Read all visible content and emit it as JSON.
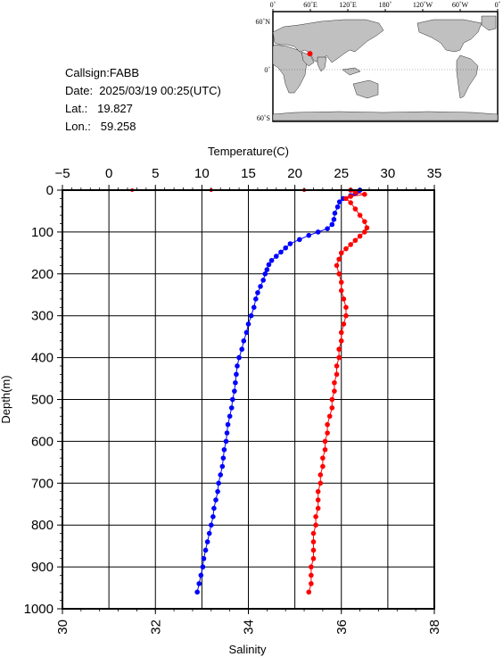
{
  "info": {
    "callsign": "Callsign:FABB",
    "date": "Date:  2025/03/19 00:25(UTC)",
    "lat": "Lat.:   19.827",
    "lon": "Lon.:   59.258"
  },
  "map": {
    "top_labels": [
      "0˚",
      "60˚E",
      "120˚E",
      "180˚",
      "120˚W",
      "60˚W",
      "0˚"
    ],
    "lat_labels": [
      "60˚N",
      "0˚",
      "60˚S"
    ],
    "station": {
      "lat": 19.827,
      "lon": 59.258
    },
    "colors": {
      "land": "#c0c0c0",
      "ocean": "#ffffff",
      "station": "#ff0000"
    }
  },
  "chart_data": {
    "type": "scatter",
    "ylabel": "Depth(m)",
    "ylim": [
      0,
      1000
    ],
    "yticks": [
      "0",
      "100",
      "200",
      "300",
      "400",
      "500",
      "600",
      "700",
      "800",
      "900",
      "1000"
    ],
    "grid": true,
    "top_axis": {
      "label": "Temperature(C)",
      "range": [
        -5,
        35
      ],
      "ticks": [
        "-5",
        "0",
        "5",
        "10",
        "15",
        "20",
        "25",
        "30",
        "35"
      ]
    },
    "bottom_axis": {
      "label": "Salinity",
      "range": [
        30,
        38
      ],
      "ticks": [
        "30",
        "32",
        "34",
        "36",
        "38"
      ]
    },
    "series": [
      {
        "axis": "top",
        "color": "#0000ff",
        "points": [
          [
            27.0,
            0
          ],
          [
            26.8,
            3
          ],
          [
            26.5,
            8
          ],
          [
            26.0,
            13
          ],
          [
            25.2,
            20
          ],
          [
            24.8,
            28
          ],
          [
            24.6,
            40
          ],
          [
            24.3,
            55
          ],
          [
            24.2,
            70
          ],
          [
            24.0,
            82
          ],
          [
            23.5,
            92
          ],
          [
            22.5,
            100
          ],
          [
            21.5,
            108
          ],
          [
            20.5,
            118
          ],
          [
            19.5,
            128
          ],
          [
            19.0,
            138
          ],
          [
            18.5,
            148
          ],
          [
            18.0,
            158
          ],
          [
            17.5,
            168
          ],
          [
            17.2,
            178
          ],
          [
            17.0,
            190
          ],
          [
            16.8,
            200
          ],
          [
            16.6,
            215
          ],
          [
            16.3,
            230
          ],
          [
            16.0,
            245
          ],
          [
            15.8,
            260
          ],
          [
            15.6,
            280
          ],
          [
            15.3,
            300
          ],
          [
            15.0,
            320
          ],
          [
            14.8,
            340
          ],
          [
            14.5,
            360
          ],
          [
            14.3,
            380
          ],
          [
            14.0,
            400
          ],
          [
            13.8,
            420
          ],
          [
            13.7,
            440
          ],
          [
            13.6,
            460
          ],
          [
            13.5,
            480
          ],
          [
            13.3,
            500
          ],
          [
            13.2,
            520
          ],
          [
            13.0,
            540
          ],
          [
            12.8,
            560
          ],
          [
            12.7,
            580
          ],
          [
            12.6,
            600
          ],
          [
            12.4,
            620
          ],
          [
            12.3,
            640
          ],
          [
            12.2,
            660
          ],
          [
            12.0,
            680
          ],
          [
            11.8,
            700
          ],
          [
            11.7,
            720
          ],
          [
            11.5,
            740
          ],
          [
            11.3,
            760
          ],
          [
            11.2,
            780
          ],
          [
            11.0,
            800
          ],
          [
            10.8,
            820
          ],
          [
            10.6,
            840
          ],
          [
            10.4,
            860
          ],
          [
            10.2,
            880
          ],
          [
            10.1,
            900
          ],
          [
            9.9,
            920
          ],
          [
            9.7,
            940
          ],
          [
            9.5,
            960
          ]
        ]
      },
      {
        "axis": "bottom",
        "color": "#ff0000",
        "points": [
          [
            36.2,
            0
          ],
          [
            36.3,
            5
          ],
          [
            36.5,
            10
          ],
          [
            36.2,
            15
          ],
          [
            36.1,
            20
          ],
          [
            36.2,
            30
          ],
          [
            36.3,
            45
          ],
          [
            36.4,
            60
          ],
          [
            36.5,
            75
          ],
          [
            36.55,
            90
          ],
          [
            36.5,
            100
          ],
          [
            36.4,
            110
          ],
          [
            36.3,
            120
          ],
          [
            36.2,
            130
          ],
          [
            36.1,
            140
          ],
          [
            36.0,
            150
          ],
          [
            35.95,
            165
          ],
          [
            35.9,
            180
          ],
          [
            35.95,
            200
          ],
          [
            36.0,
            220
          ],
          [
            36.0,
            240
          ],
          [
            36.05,
            260
          ],
          [
            36.1,
            280
          ],
          [
            36.1,
            300
          ],
          [
            36.05,
            320
          ],
          [
            36.0,
            340
          ],
          [
            36.0,
            360
          ],
          [
            35.95,
            380
          ],
          [
            35.95,
            400
          ],
          [
            35.9,
            420
          ],
          [
            35.9,
            440
          ],
          [
            35.85,
            460
          ],
          [
            35.85,
            480
          ],
          [
            35.8,
            500
          ],
          [
            35.8,
            520
          ],
          [
            35.75,
            540
          ],
          [
            35.7,
            560
          ],
          [
            35.7,
            580
          ],
          [
            35.65,
            600
          ],
          [
            35.65,
            620
          ],
          [
            35.6,
            640
          ],
          [
            35.6,
            660
          ],
          [
            35.55,
            680
          ],
          [
            35.55,
            700
          ],
          [
            35.5,
            720
          ],
          [
            35.5,
            740
          ],
          [
            35.5,
            760
          ],
          [
            35.45,
            780
          ],
          [
            35.45,
            800
          ],
          [
            35.4,
            820
          ],
          [
            35.4,
            840
          ],
          [
            35.4,
            860
          ],
          [
            35.4,
            880
          ],
          [
            35.35,
            900
          ],
          [
            35.35,
            920
          ],
          [
            35.35,
            940
          ],
          [
            35.3,
            960
          ]
        ]
      }
    ],
    "surface_flags": {
      "color": "#ff0000",
      "points": [
        [
          31.5,
          0
        ],
        [
          33.2,
          0
        ],
        [
          35.2,
          0
        ]
      ]
    }
  }
}
